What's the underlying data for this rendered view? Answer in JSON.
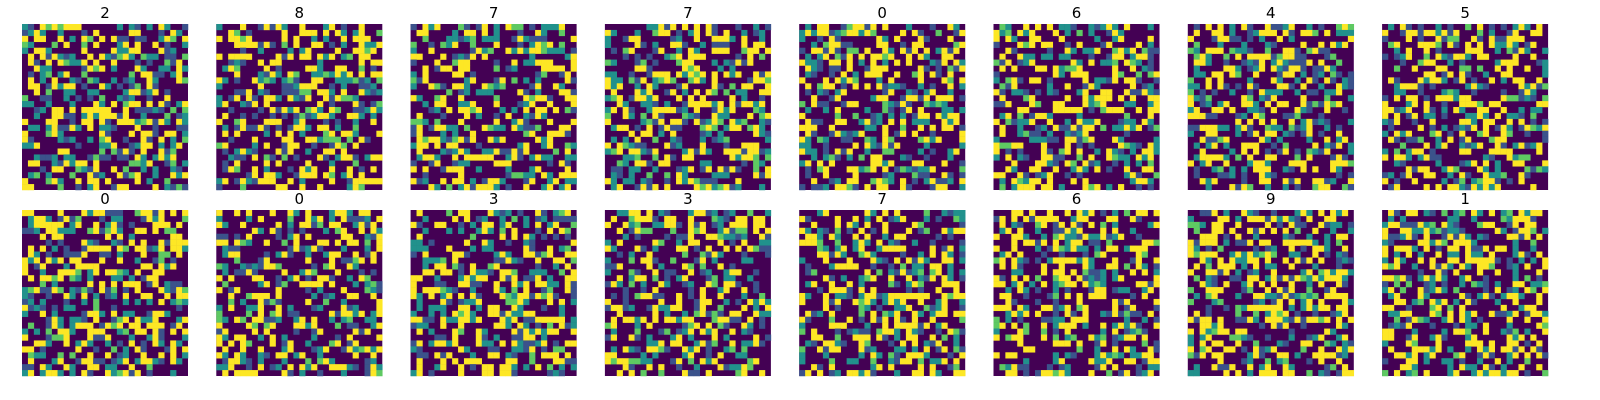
{
  "chart_data": {
    "type": "heatmap",
    "layout": "grid of image panels, no axes",
    "rows": 2,
    "cols": 8,
    "image_size": [
      28,
      28
    ],
    "colormap": "viridis",
    "colormap_levels": [
      "#440154",
      "#3b528b",
      "#21918c",
      "#5ec962",
      "#fde725"
    ],
    "axis": "off",
    "grid": false,
    "legend": "none",
    "titles": [
      "2",
      "8",
      "7",
      "7",
      "0",
      "6",
      "4",
      "5",
      "0",
      "0",
      "3",
      "3",
      "7",
      "6",
      "9",
      "1"
    ]
  }
}
